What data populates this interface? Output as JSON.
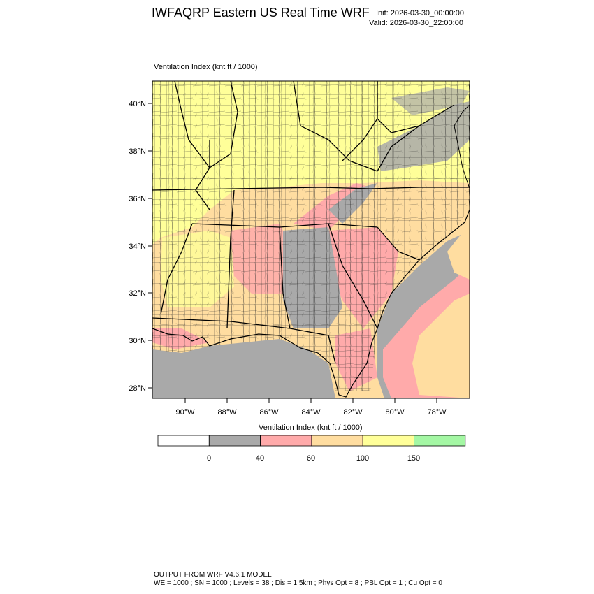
{
  "header": {
    "title": "IWFAQRP Eastern US Real Time WRF",
    "init": "Init: 2026-03-30_00:00:00",
    "valid": "Valid: 2026-03-30_22:00:00"
  },
  "map": {
    "field_title": "Ventilation Index   (knt ft / 1000)",
    "lat_labels": [
      "40°N",
      "38°N",
      "36°N",
      "34°N",
      "32°N",
      "30°N",
      "28°N"
    ],
    "lon_labels": [
      "90°W",
      "88°W",
      "86°W",
      "84°W",
      "82°W",
      "80°W",
      "78°W"
    ]
  },
  "legend": {
    "title": "Ventilation Index  (knt ft / 1000)",
    "ticks": [
      "0",
      "40",
      "60",
      "100",
      "150"
    ],
    "bins": [
      {
        "color": "#ffffff"
      },
      {
        "color": "#a9a9a9"
      },
      {
        "color": "#ffaaaa"
      },
      {
        "color": "#ffdda0"
      },
      {
        "color": "#ffff99"
      },
      {
        "color": "#a4f7a4"
      }
    ]
  },
  "footer": {
    "line1": "OUTPUT FROM WRF V4.6.1 MODEL",
    "line2": "WE = 1000 ; SN = 1000 ; Levels = 38 ; Dis = 1.5km ; Phys Opt = 8 ; PBL Opt = 1 ; Cu Opt = 0"
  }
}
